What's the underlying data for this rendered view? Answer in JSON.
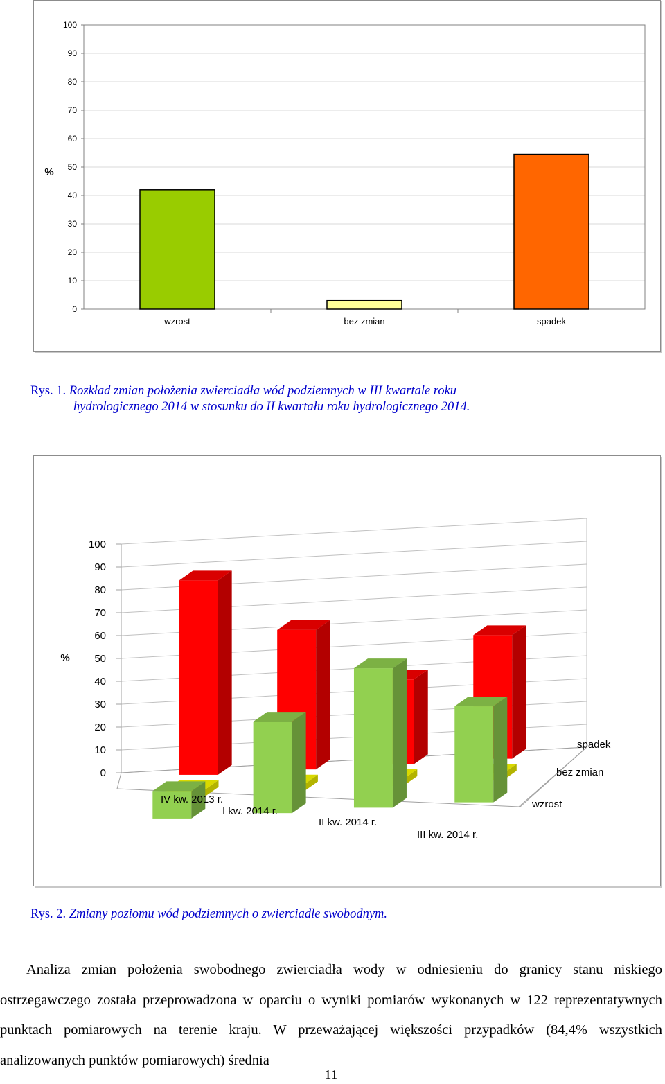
{
  "chart_data": [
    {
      "type": "bar",
      "ylabel": "%",
      "ylim": [
        0,
        100
      ],
      "yticks": [
        0,
        10,
        20,
        30,
        40,
        50,
        60,
        70,
        80,
        90,
        100
      ],
      "categories": [
        "wzrost",
        "bez zmian",
        "spadek"
      ],
      "values": [
        42,
        3,
        54.5
      ],
      "colors": [
        "#99cc00",
        "#ffff99",
        "#ff6600"
      ],
      "grid": true,
      "legend": "none"
    },
    {
      "type": "bar",
      "subtype": "3d-grouped",
      "ylabel": "%",
      "ylim": [
        0,
        100
      ],
      "yticks": [
        0,
        10,
        20,
        30,
        40,
        50,
        60,
        70,
        80,
        90,
        100
      ],
      "categories": [
        "IV kw. 2013 r.",
        "I kw. 2014 r.",
        "II kw. 2014 r.",
        "III kw. 2014 r."
      ],
      "series": [
        {
          "name": "wzrost",
          "values": [
            12,
            40,
            61,
            42
          ],
          "color": "#92d050"
        },
        {
          "name": "bez zmian",
          "values": [
            3,
            3,
            3,
            3
          ],
          "color": "#ffff00"
        },
        {
          "name": "spadek",
          "values": [
            85,
            61,
            37,
            54
          ],
          "color": "#ff0000"
        }
      ],
      "grid": true
    }
  ],
  "captions": {
    "fig1_label": "Rys. 1.",
    "fig1_line1": "Rozkład zmian położenia zwierciadła wód podziemnych w III kwartale roku",
    "fig1_line2": "hydrologicznego 2014 w stosunku do II kwartału roku hydrologicznego 2014.",
    "fig2_label": "Rys. 2.",
    "fig2_text": "Zmiany poziomu wód podziemnych o zwierciadle swobodnym."
  },
  "paragraph": "Analiza zmian położenia swobodnego zwierciadła wody w odniesieniu do granicy stanu niskiego ostrzegawczego została przeprowadzona w oparciu o wyniki pomiarów wykonanych w 122 reprezentatywnych punktach pomiarowych na terenie kraju. W przeważającej większości przypadków (84,4% wszystkich analizowanych punktów pomiarowych) średnia",
  "page_number": "11"
}
